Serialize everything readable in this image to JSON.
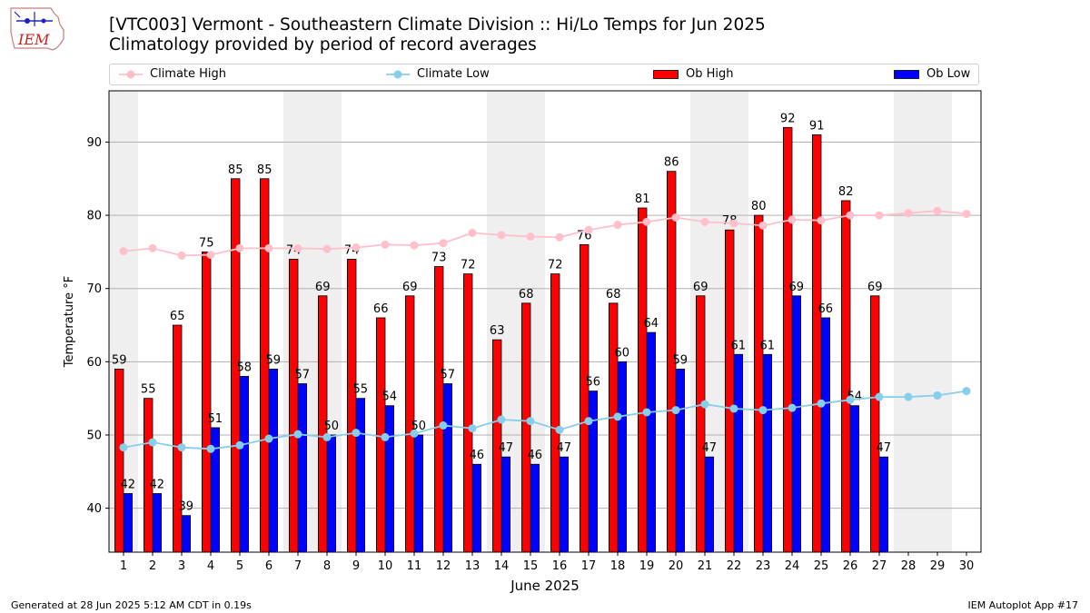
{
  "header": {
    "logo_text": "IEM",
    "title": "[VTC003] Vermont - Southeastern Climate Division :: Hi/Lo Temps for Jun 2025",
    "subtitle": "Climatology provided by period of record averages"
  },
  "footer": {
    "left": "Generated at 28 Jun 2025 5:12 AM CDT in 0.19s",
    "right": "IEM Autoplot App #17"
  },
  "colors": {
    "ob_high": "#ff0000",
    "ob_low": "#0000ff",
    "climate_high": "#ffc0cb",
    "climate_low": "#87ceeb",
    "weekend_shade": "#efefef",
    "grid": "#b0b0b0"
  },
  "chart_data": {
    "type": "bar",
    "xlabel": "June 2025",
    "ylabel": "Temperature °F",
    "ylim": [
      34,
      97
    ],
    "yticks": [
      40,
      50,
      60,
      70,
      80,
      90
    ],
    "grid": "horizontal",
    "legend_position": "top",
    "weekend_shading": [
      [
        1,
        1
      ],
      [
        7,
        8
      ],
      [
        14,
        15
      ],
      [
        21,
        22
      ],
      [
        28,
        29
      ]
    ],
    "categories": [
      1,
      2,
      3,
      4,
      5,
      6,
      7,
      8,
      9,
      10,
      11,
      12,
      13,
      14,
      15,
      16,
      17,
      18,
      19,
      20,
      21,
      22,
      23,
      24,
      25,
      26,
      27,
      28,
      29,
      30
    ],
    "series": [
      {
        "name": "Climate High",
        "kind": "line",
        "values": [
          75.1,
          75.5,
          74.5,
          74.6,
          75.5,
          75.5,
          75.5,
          75.4,
          75.6,
          76.0,
          75.9,
          76.2,
          77.6,
          77.3,
          77.1,
          77.0,
          78.0,
          78.7,
          79.1,
          79.7,
          79.1,
          78.9,
          78.6,
          79.4,
          79.3,
          80.0,
          80.0,
          80.3,
          80.6,
          80.2
        ]
      },
      {
        "name": "Climate Low",
        "kind": "line",
        "values": [
          48.3,
          49.0,
          48.3,
          48.1,
          48.6,
          49.5,
          50.1,
          49.7,
          50.3,
          49.7,
          50.2,
          51.3,
          50.9,
          52.1,
          51.9,
          50.7,
          51.9,
          52.5,
          53.1,
          53.4,
          54.2,
          53.6,
          53.4,
          53.7,
          54.3,
          54.8,
          55.2,
          55.2,
          55.4,
          56.0
        ]
      },
      {
        "name": "Ob High",
        "kind": "bar",
        "values": [
          59,
          55,
          65,
          75,
          85,
          85,
          74,
          69,
          74,
          66,
          69,
          73,
          72,
          63,
          68,
          72,
          76,
          68,
          81,
          86,
          69,
          78,
          80,
          92,
          91,
          82,
          69,
          null,
          null,
          null
        ]
      },
      {
        "name": "Ob Low",
        "kind": "bar",
        "values": [
          42,
          42,
          39,
          51,
          58,
          59,
          57,
          50,
          55,
          54,
          50,
          57,
          46,
          47,
          46,
          47,
          56,
          60,
          64,
          59,
          47,
          61,
          61,
          69,
          66,
          54,
          47,
          null,
          null,
          null
        ]
      }
    ]
  }
}
